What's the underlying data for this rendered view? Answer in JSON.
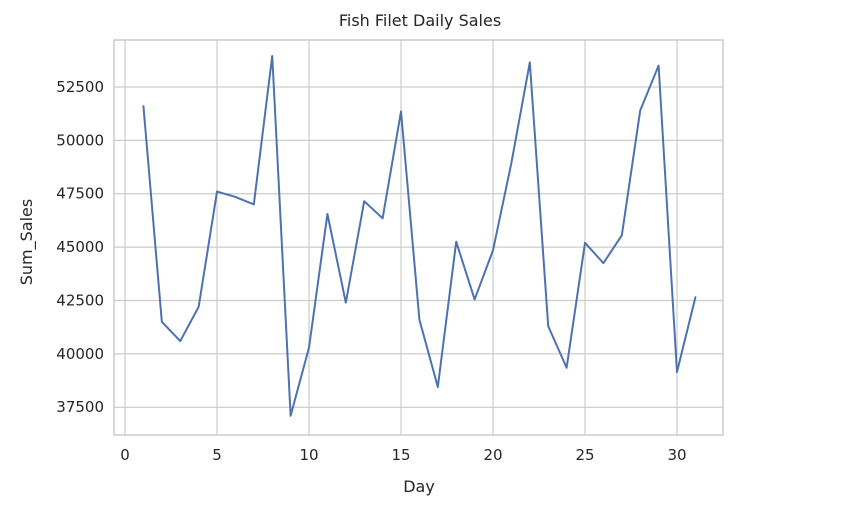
{
  "chart_data": {
    "type": "line",
    "title": "Fish Filet Daily Sales",
    "xlabel": "Day",
    "ylabel": "Sum_Sales",
    "xlim": [
      -0.6,
      32.5
    ],
    "ylim": [
      36200,
      54700
    ],
    "xticks": [
      0,
      5,
      10,
      15,
      20,
      25,
      30
    ],
    "yticks": [
      37500,
      40000,
      42500,
      45000,
      47500,
      50000,
      52500
    ],
    "grid": true,
    "series": [
      {
        "color": "#4c72b0",
        "x": [
          1,
          2,
          3,
          4,
          5,
          6,
          7,
          8,
          9,
          10,
          11,
          12,
          13,
          14,
          15,
          16,
          17,
          18,
          19,
          20,
          21,
          22,
          23,
          24,
          25,
          26,
          27,
          28,
          29,
          30,
          31
        ],
        "values": [
          51600,
          41500,
          40600,
          42200,
          47600,
          47350,
          47000,
          53950,
          37100,
          40300,
          46550,
          42400,
          47150,
          46350,
          51350,
          41600,
          38450,
          45250,
          42550,
          44850,
          48950,
          53650,
          41300,
          39350,
          45200,
          44250,
          45550,
          51400,
          53500,
          39150,
          42650
        ]
      }
    ]
  }
}
